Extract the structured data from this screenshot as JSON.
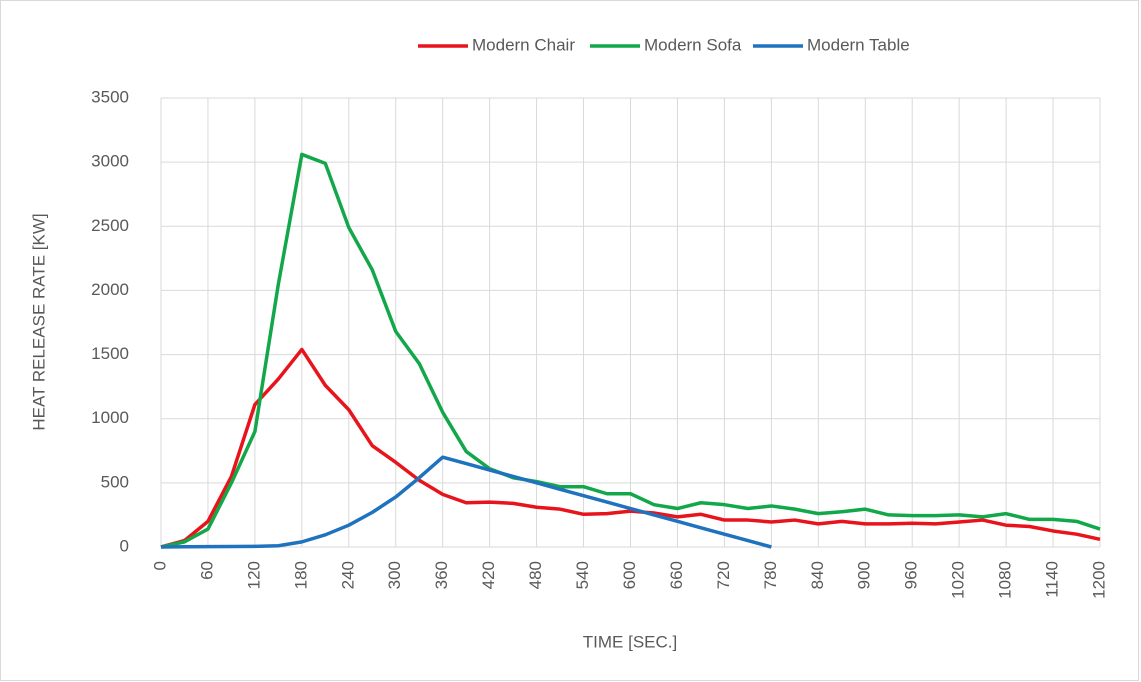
{
  "chart_data": {
    "type": "line",
    "xlabel": "TIME [SEC.]",
    "ylabel": "HEAT RELEASE RATE [KW]",
    "x": [
      0,
      30,
      60,
      90,
      120,
      150,
      180,
      210,
      240,
      270,
      300,
      330,
      360,
      390,
      420,
      450,
      480,
      510,
      540,
      570,
      600,
      630,
      660,
      690,
      720,
      750,
      780,
      810,
      840,
      870,
      900,
      930,
      960,
      990,
      1020,
      1050,
      1080,
      1110,
      1140,
      1170,
      1200
    ],
    "series": [
      {
        "name": "Modern Chair",
        "color": "#e8141b",
        "values": [
          0,
          50,
          200,
          550,
          1110,
          1310,
          1540,
          1260,
          1070,
          790,
          660,
          520,
          410,
          345,
          350,
          340,
          310,
          295,
          255,
          260,
          280,
          265,
          235,
          255,
          210,
          210,
          195,
          210,
          180,
          200,
          180,
          180,
          185,
          180,
          195,
          210,
          170,
          160,
          125,
          100,
          60
        ]
      },
      {
        "name": "Modern Sofa",
        "color": "#12a84a",
        "values": [
          0,
          40,
          140,
          500,
          900,
          2050,
          3060,
          2990,
          2490,
          2160,
          1680,
          1430,
          1050,
          745,
          610,
          540,
          510,
          470,
          470,
          415,
          415,
          330,
          300,
          345,
          330,
          300,
          320,
          295,
          260,
          275,
          295,
          250,
          245,
          245,
          250,
          235,
          260,
          215,
          215,
          200,
          140
        ]
      },
      {
        "name": "Modern Table",
        "color": "#1f72bd",
        "values": [
          0,
          2,
          3,
          4,
          5,
          10,
          40,
          95,
          170,
          270,
          390,
          540,
          700,
          650,
          600,
          550,
          500,
          450,
          400,
          350,
          300,
          250,
          200,
          150,
          100,
          50,
          0,
          null,
          null,
          null,
          null,
          null,
          null,
          null,
          null,
          null,
          null,
          null,
          null,
          null,
          null
        ]
      }
    ],
    "xlim": [
      0,
      1200
    ],
    "xticks": [
      0,
      60,
      120,
      180,
      240,
      300,
      360,
      420,
      480,
      540,
      600,
      660,
      720,
      780,
      840,
      900,
      960,
      1020,
      1080,
      1140,
      1200
    ],
    "ylim": [
      0,
      3500
    ],
    "yticks": [
      0,
      500,
      1000,
      1500,
      2000,
      2500,
      3000,
      3500
    ],
    "grid": true,
    "legend": "top"
  }
}
